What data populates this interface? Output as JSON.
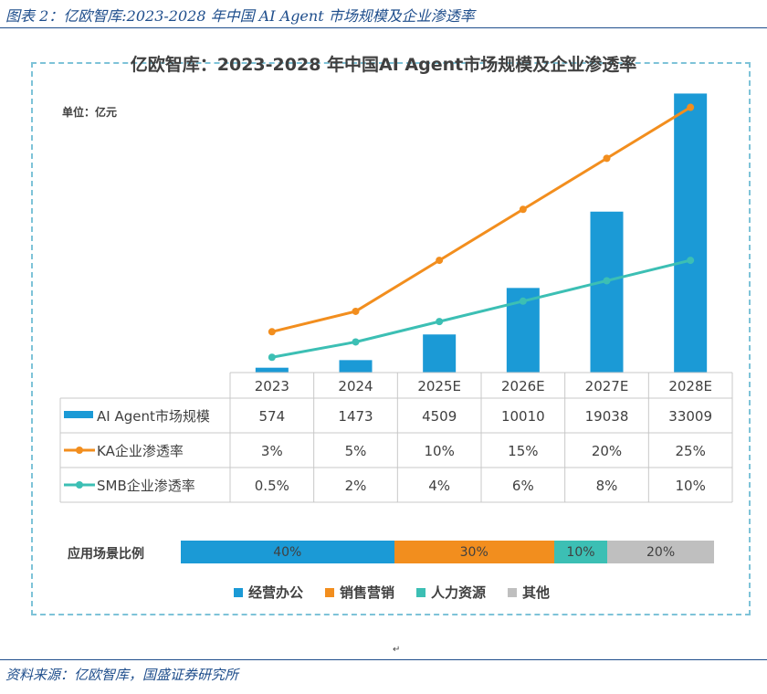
{
  "caption": "图表 2：亿欧智库:2023-2028 年中国 AI Agent 市场规模及企业渗透率",
  "source": "资料来源：亿欧智库，国盛证券研究所",
  "para_mark": "↵",
  "chart_data": {
    "type": "bar",
    "title": "亿欧智库：2023-2028 年中国AI Agent市场规模及企业渗透率",
    "unit": "单位：亿元",
    "categories": [
      "2023",
      "2024",
      "2025E",
      "2026E",
      "2027E",
      "2028E"
    ],
    "series": [
      {
        "name": "AI Agent市场规模",
        "type": "bar",
        "color": "#1b9ad6",
        "values": [
          574,
          1473,
          4509,
          10010,
          19038,
          33009
        ],
        "labels": [
          "574",
          "1473",
          "4509",
          "10010",
          "19038",
          "33009"
        ]
      },
      {
        "name": "KA企业渗透率",
        "type": "line",
        "color": "#f28e1e",
        "values": [
          3,
          5,
          10,
          15,
          20,
          25
        ],
        "labels": [
          "3%",
          "5%",
          "10%",
          "15%",
          "20%",
          "25%"
        ]
      },
      {
        "name": "SMB企业渗透率",
        "type": "line",
        "color": "#3cbfb4",
        "values": [
          0.5,
          2,
          4,
          6,
          8,
          10
        ],
        "labels": [
          "0.5%",
          "2%",
          "4%",
          "6%",
          "8%",
          "10%"
        ]
      }
    ],
    "bar_ylim": [
      0,
      35000
    ],
    "line_ylim": [
      -1,
      28
    ],
    "scene": {
      "label": "应用场景比例",
      "segments": [
        {
          "name": "经营办公",
          "value": 40,
          "label": "40%",
          "color": "#1b9ad6"
        },
        {
          "name": "销售营销",
          "value": 30,
          "label": "30%",
          "color": "#f28e1e"
        },
        {
          "name": "人力资源",
          "value": 10,
          "label": "10%",
          "color": "#3cbfb4"
        },
        {
          "name": "其他",
          "value": 20,
          "label": "20%",
          "color": "#bfbfbf"
        }
      ]
    }
  }
}
